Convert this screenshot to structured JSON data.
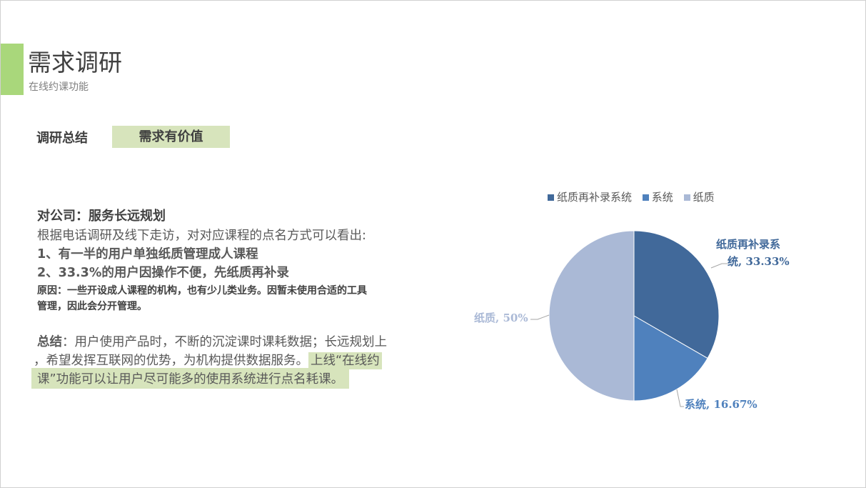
{
  "header": {
    "title": "需求调研",
    "subtitle": "在线约课功能"
  },
  "summary": {
    "label": "调研总结",
    "value": "需求有价值"
  },
  "body": {
    "heading": "对公司：服务长远规划",
    "intro": "根据电话调研及线下走访，对对应课程的点名方式可以看出:",
    "point1": "1、有一半的用户单独纸质管理成人课程",
    "point2": "2、33.3%的用户因操作不便，先纸质再补录",
    "reason1": "原因：一些开设成人课程的机构，也有少儿类业务。因暂未使用合适的工具",
    "reason2": "管理，因此会分开管理。",
    "conclusion_label": "总结",
    "conclusion1": "：用户使用产品时，不断的沉淀课时课耗数据；长远规划上",
    "conclusion2a": "，希望发挥互联网的优势，为机构提供数据服务。",
    "conclusion2b": "上线“在线约",
    "conclusion3": "课”功能可以让用户尽可能多的使用系统进行点名耗课。"
  },
  "chart_data": {
    "type": "pie",
    "categories": [
      "纸质再补录系统",
      "系统",
      "纸质"
    ],
    "values": [
      33.33,
      16.67,
      50
    ],
    "colors": [
      "#41699a",
      "#4f81bd",
      "#aab9d6"
    ],
    "data_labels": [
      "纸质再补录系统, 33.33%",
      "系统, 16.67%",
      "纸质, 50%"
    ],
    "label_lines": {
      "l0a": "纸质再补录系",
      "l0b": "统, 33.33%"
    },
    "legend_position": "top"
  }
}
